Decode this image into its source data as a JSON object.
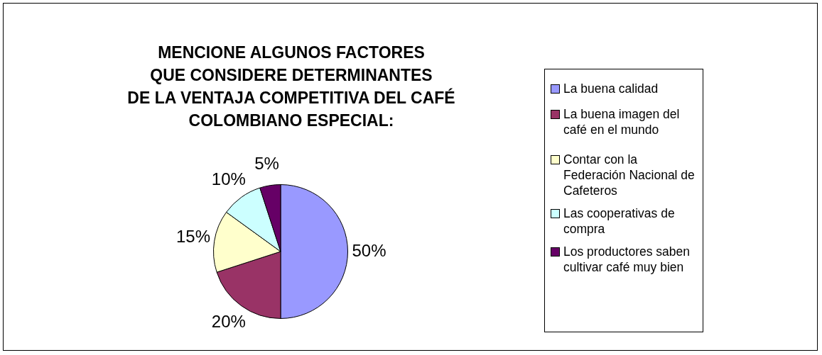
{
  "chart_data": {
    "type": "pie",
    "title": "MENCIONE ALGUNOS FACTORES\nQUE CONSIDERE DETERMINANTES\nDE LA VENTAJA COMPETITIVA DEL CAFÉ\nCOLOMBIANO ESPECIAL:",
    "categories": [
      "La buena calidad",
      "La buena imagen del café en el mundo",
      "Contar con la Federación Nacional de Cafeteros",
      "Las cooperativas de compra",
      "Los productores saben cultivar café muy bien"
    ],
    "values": [
      50,
      20,
      15,
      10,
      5
    ],
    "value_labels": [
      "50%",
      "20%",
      "15%",
      "10%",
      "5%"
    ],
    "colors": [
      "#9999ff",
      "#993366",
      "#ffffcc",
      "#ccffff",
      "#660066"
    ],
    "legend": "right"
  }
}
